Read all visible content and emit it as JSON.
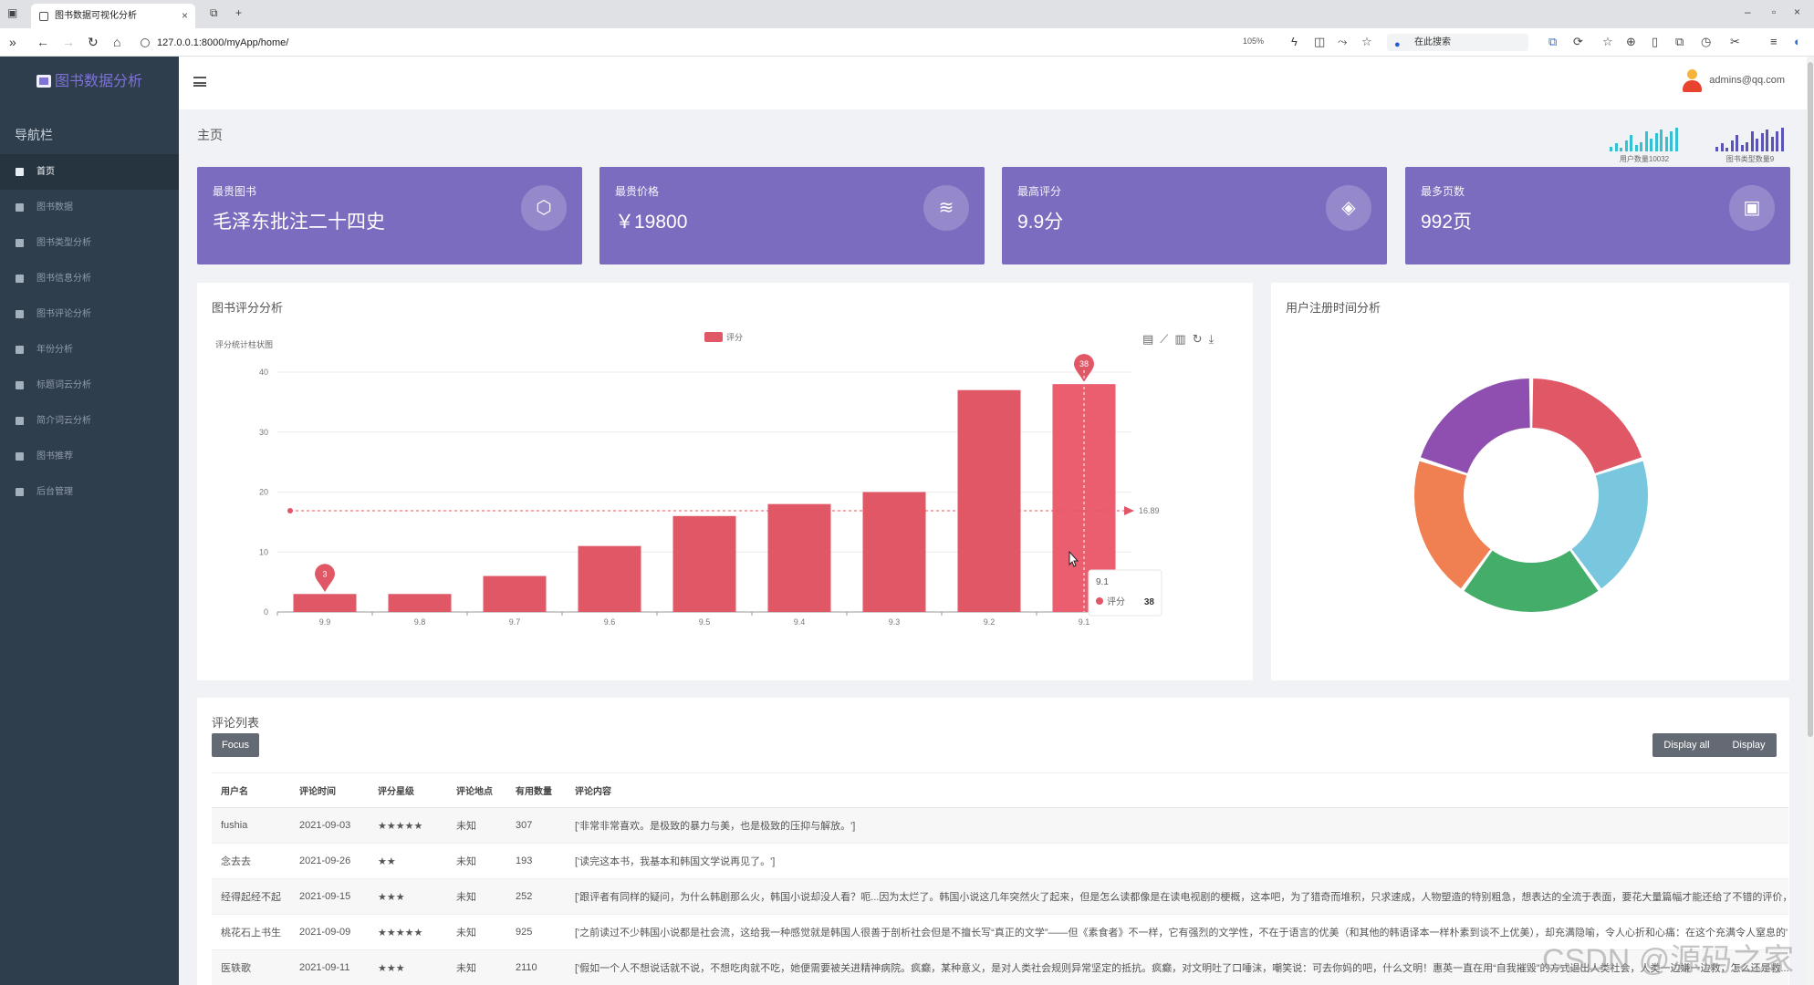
{
  "browser": {
    "tab_title": "图书数据可视化分析",
    "url": "127.0.0.1:8000/myApp/home/",
    "zoom": "105%",
    "search_placeholder": "在此搜索"
  },
  "sidebar": {
    "logo": "图书数据分析",
    "nav_heading": "导航栏",
    "items": [
      {
        "label": "首页",
        "icon": "dashboard-icon",
        "active": true
      },
      {
        "label": "图书数据",
        "icon": "calendar-icon"
      },
      {
        "label": "图书类型分析",
        "icon": "printer-icon"
      },
      {
        "label": "图书信息分析",
        "icon": "book-icon"
      },
      {
        "label": "图书评论分析",
        "icon": "comment-icon"
      },
      {
        "label": "年份分析",
        "icon": "timeline-icon"
      },
      {
        "label": "标题词云分析",
        "icon": "cloud-icon"
      },
      {
        "label": "简介词云分析",
        "icon": "cloud-upload-icon"
      },
      {
        "label": "图书推荐",
        "icon": "square-icon"
      },
      {
        "label": "后台管理",
        "icon": "square-icon"
      }
    ]
  },
  "header": {
    "user": "admins@qq.com",
    "page_title": "主页",
    "mini_stats": [
      {
        "label": "用户数量10032",
        "color": "#33c1d3"
      },
      {
        "label": "图书类型数量9",
        "color": "#5b54b8"
      }
    ]
  },
  "cards": [
    {
      "label": "最贵图书",
      "value": "毛泽东批注二十四史",
      "icon": "cube-icon"
    },
    {
      "label": "最贵价格",
      "value": "￥19800",
      "icon": "layers-icon"
    },
    {
      "label": "最高评分",
      "value": "9.9分",
      "icon": "tag-icon"
    },
    {
      "label": "最多页数",
      "value": "992页",
      "icon": "bag-icon"
    }
  ],
  "rating_panel": {
    "title": "图书评分分析"
  },
  "register_panel": {
    "title": "用户注册时间分析"
  },
  "chart_data": [
    {
      "type": "bar",
      "title": "评分统计柱状图",
      "legend": "评分",
      "categories": [
        "9.9",
        "9.8",
        "9.7",
        "9.6",
        "9.5",
        "9.4",
        "9.3",
        "9.2",
        "9.1"
      ],
      "values": [
        3,
        3,
        6,
        11,
        16,
        18,
        20,
        37,
        38
      ],
      "ylim": [
        0,
        40
      ],
      "yticks": [
        0,
        10,
        20,
        30,
        40
      ],
      "color": "#e05766",
      "mark_point_min": {
        "category": "9.9",
        "value": 3
      },
      "mark_point_max": {
        "category": "9.1",
        "value": 38
      },
      "mark_line_average": 16.89,
      "tooltip": {
        "category": "9.1",
        "series": "评分",
        "value": 38
      }
    },
    {
      "type": "pie",
      "variant": "donut",
      "slices": [
        {
          "value": 20,
          "color": "#e05766"
        },
        {
          "value": 20,
          "color": "#79c7de"
        },
        {
          "value": 20,
          "color": "#44ad6a"
        },
        {
          "value": 20,
          "color": "#f07f52"
        },
        {
          "value": 20,
          "color": "#8f4fb0"
        }
      ]
    }
  ],
  "comments": {
    "title": "评论列表",
    "focus_label": "Focus",
    "display_all_label": "Display all",
    "display_label": "Display",
    "columns": [
      "用户名",
      "评论时间",
      "评分星级",
      "评论地点",
      "有用数量",
      "评论内容"
    ],
    "rows": [
      [
        "fushia",
        "2021-09-03",
        "★★★★★",
        "未知",
        "307",
        "['非常非常喜欢。是极致的暴力与美，也是极致的压抑与解放。']"
      ],
      [
        "念去去",
        "2021-09-26",
        "★★",
        "未知",
        "193",
        "['读完这本书，我基本和韩国文学说再见了。']"
      ],
      [
        "经得起经不起",
        "2021-09-15",
        "★★★",
        "未知",
        "252",
        "['跟评者有同样的疑问，为什么韩剧那么火，韩国小说却没人看？呃...因为太烂了。韩国小说这几年突然火了起来，但是怎么读都像是在读电视剧的梗概，这本吧，为了猎奇而堆积，只求速成，人物塑造的特别粗急，想表达的全流于表面，要花大量篇幅才能还给了不错的评价，真是...']"
      ],
      [
        "桃花石上书生",
        "2021-09-09",
        "★★★★★",
        "未知",
        "925",
        "['之前读过不少韩国小说都是社会流，这给我一种感觉就是韩国人很善于剖析社会但是不擅长写“真正的文学”——但《素食者》不一样，它有强烈的文学性，不在于语言的优美（和其他的韩语译本一样朴素到谈不上优美），却充满隐喻，令人心折和心痛：在这个充满令人窒息的'内的']"
      ],
      [
        "医轶歌",
        "2021-09-11",
        "★★★",
        "未知",
        "2110",
        "['假如一个人不想说话就不说，不想吃肉就不吃，她便需要被关进精神病院。疯癫，某种意义，是对人类社会规则异常坚定的抵抗。疯癫，对文明吐了口唾沫，嘲笑说：可去你妈的吧，什么文明！惠英一直在用“自我摧毁”的方式退出人类社会，人类一边嫌一边救，怎么还是救...']"
      ]
    ]
  },
  "watermark": "CSDN @源码之家"
}
